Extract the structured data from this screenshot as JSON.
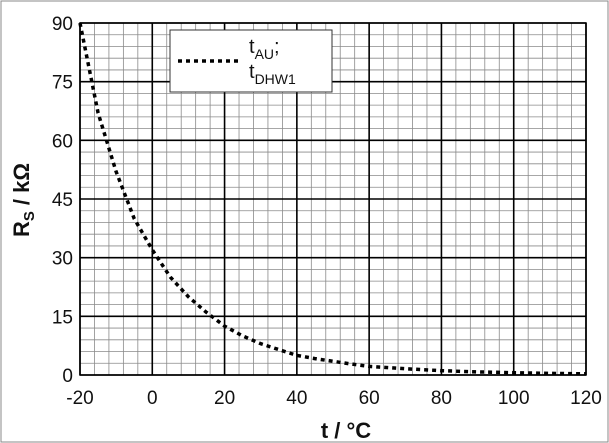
{
  "chart_data": {
    "type": "line",
    "title": "",
    "xlabel": "t  /  °C",
    "ylabel": "R",
    "ylabel_sub": "S",
    "ylabel_unit": "/  kΩ",
    "xlim": [
      -20,
      120
    ],
    "ylim": [
      0,
      90
    ],
    "x_ticks": [
      -20,
      0,
      20,
      40,
      60,
      80,
      100,
      120
    ],
    "y_ticks": [
      0,
      15,
      30,
      45,
      60,
      75,
      90
    ],
    "x_tick_labels": [
      "-20",
      "0",
      "20",
      "40",
      "60",
      "80",
      "100",
      "120"
    ],
    "y_tick_labels": [
      "0",
      "15",
      "30",
      "45",
      "60",
      "75",
      "90"
    ],
    "grid": true,
    "legend_position": "top-center",
    "legend": {
      "line1_main": "t",
      "line1_sub": "AU",
      "line1_suffix": ";",
      "line2_main": "t",
      "line2_sub": "DHW1"
    },
    "series": [
      {
        "style": "dotted",
        "color": "#000000",
        "x": [
          -20,
          -15,
          -10,
          -5,
          0,
          5,
          10,
          15,
          20,
          25,
          30,
          35,
          40,
          45,
          50,
          55,
          60,
          70,
          80,
          90,
          100,
          110,
          120
        ],
        "y": [
          90,
          67,
          52,
          40,
          32,
          25,
          20,
          16,
          12.5,
          10,
          8,
          6.5,
          5,
          4.2,
          3.5,
          2.8,
          2.2,
          1.6,
          1.1,
          0.8,
          0.6,
          0.4,
          0.3
        ]
      }
    ]
  }
}
